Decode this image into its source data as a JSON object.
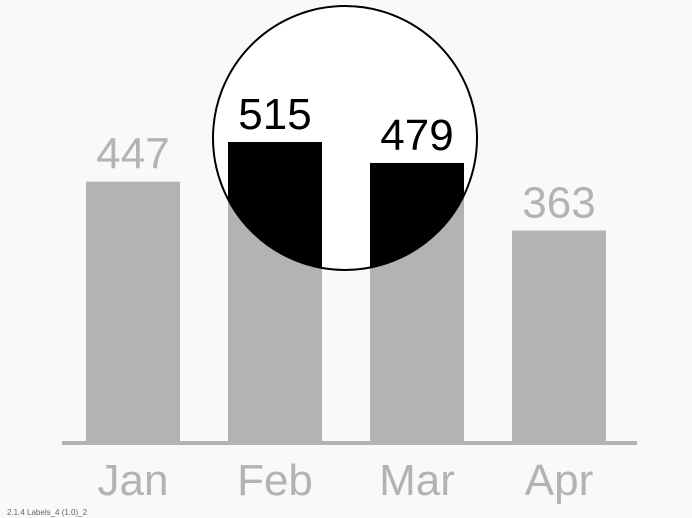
{
  "chart_data": {
    "type": "bar",
    "categories": [
      "Jan",
      "Feb",
      "Mar",
      "Apr"
    ],
    "values": [
      447,
      515,
      479,
      363
    ],
    "highlighted": [
      "Feb",
      "Mar"
    ],
    "title": "",
    "xlabel": "",
    "ylabel": "",
    "ylim": [
      0,
      515
    ],
    "grid": false,
    "legend": "none",
    "colors": {
      "bar": "#b3b3b3",
      "bar_highlight": "#000000",
      "label": "#b3b3b3",
      "label_highlight": "#000000",
      "axis": "#b3b3b3",
      "magnifier_fill": "#ffffff",
      "magnifier_stroke": "#000000",
      "background": "#f9f9f9"
    }
  },
  "footer": {
    "caption": "2.1.4 Labels_4 (1.0)_2"
  }
}
